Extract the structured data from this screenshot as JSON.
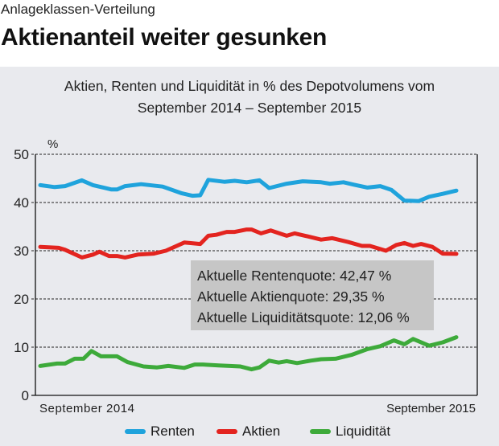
{
  "header": {
    "kicker": "Anlageklassen-Verteilung",
    "headline": "Aktienanteil weiter gesunken"
  },
  "chart_data": {
    "type": "line",
    "title_line1": "Aktien, Renten und Liquidität in % des Depotvolumens vom",
    "title_line2": "September 2014 – September 2015",
    "ylabel": "%",
    "xlabel": "",
    "ylim": [
      0,
      50
    ],
    "yticks": [
      "0",
      "10",
      "20",
      "30",
      "40",
      "50"
    ],
    "x_unit": "weeks since September 2014",
    "xlim": [
      0,
      52
    ],
    "xtick_labels": [
      "September 2014",
      "September 2015"
    ],
    "grid": true,
    "legend_position": "bottom",
    "annotation": [
      "Aktuelle Rentenquote: 42,47 %",
      "Aktuelle Aktienquote: 29,35 %",
      "Aktuelle Liquiditätsquote: 12,06 %"
    ],
    "series": [
      {
        "name": "Renten",
        "color": "#1fa3dc",
        "x": [
          0,
          1.8,
          3.1,
          5.2,
          6.6,
          8.9,
          9.6,
          10.6,
          12.6,
          15.3,
          17.7,
          19,
          20,
          21,
          23,
          24.3,
          25.8,
          27.4,
          28.6,
          30.8,
          32.8,
          35.1,
          36.2,
          37.9,
          39.2,
          40.9,
          42.5,
          43.9,
          45.5,
          47.3,
          48.6,
          50.3,
          52
        ],
        "values": [
          43.6,
          43.2,
          43.4,
          44.6,
          43.6,
          42.7,
          42.7,
          43.4,
          43.8,
          43.3,
          41.9,
          41.4,
          41.5,
          44.7,
          44.3,
          44.5,
          44.2,
          44.6,
          43.0,
          43.9,
          44.4,
          44.2,
          43.9,
          44.2,
          43.7,
          43.1,
          43.4,
          42.6,
          40.4,
          40.3,
          41.2,
          41.8,
          42.47
        ]
      },
      {
        "name": "Aktien",
        "color": "#e3241f",
        "x": [
          0,
          2.3,
          3.1,
          5.2,
          6.6,
          7.4,
          8.6,
          9.6,
          10.6,
          12.2,
          14.2,
          15.7,
          18,
          20,
          21,
          22,
          23.3,
          24.3,
          25.8,
          26.4,
          27.6,
          28.8,
          30.8,
          31.8,
          33.1,
          35.1,
          36.5,
          38.5,
          40.2,
          41.2,
          43.2,
          44.5,
          45.5,
          46.6,
          47.6,
          49,
          50.3,
          52
        ],
        "values": [
          30.8,
          30.6,
          30.2,
          28.6,
          29.2,
          29.8,
          28.9,
          28.9,
          28.6,
          29.2,
          29.4,
          30.0,
          31.7,
          31.4,
          33.1,
          33.3,
          33.9,
          33.9,
          34.4,
          34.4,
          33.6,
          34.2,
          33.1,
          33.6,
          33.1,
          32.3,
          32.6,
          31.8,
          31.0,
          31.0,
          30.0,
          31.2,
          31.6,
          31.0,
          31.4,
          30.8,
          29.4,
          29.35
        ]
      },
      {
        "name": "Liquidität",
        "color": "#3daa3a",
        "x": [
          0,
          2.1,
          3.1,
          4.3,
          5.4,
          6.4,
          7.6,
          9.6,
          10.9,
          12.9,
          14.6,
          16,
          18,
          19.3,
          20.3,
          22.3,
          23.7,
          25,
          26.4,
          27.4,
          28.6,
          29.8,
          30.8,
          32.1,
          33.8,
          35.1,
          36.9,
          38.9,
          40.9,
          42.5,
          44.2,
          45.5,
          46.6,
          48.6,
          50.3,
          52
        ],
        "values": [
          6.1,
          6.6,
          6.6,
          7.6,
          7.6,
          9.2,
          8.1,
          8.1,
          6.9,
          6.0,
          5.8,
          6.1,
          5.7,
          6.4,
          6.4,
          6.2,
          6.1,
          6.0,
          5.4,
          5.8,
          7.2,
          6.8,
          7.1,
          6.7,
          7.2,
          7.5,
          7.6,
          8.4,
          9.6,
          10.2,
          11.4,
          10.6,
          11.7,
          10.3,
          11.0,
          12.06
        ]
      }
    ]
  }
}
